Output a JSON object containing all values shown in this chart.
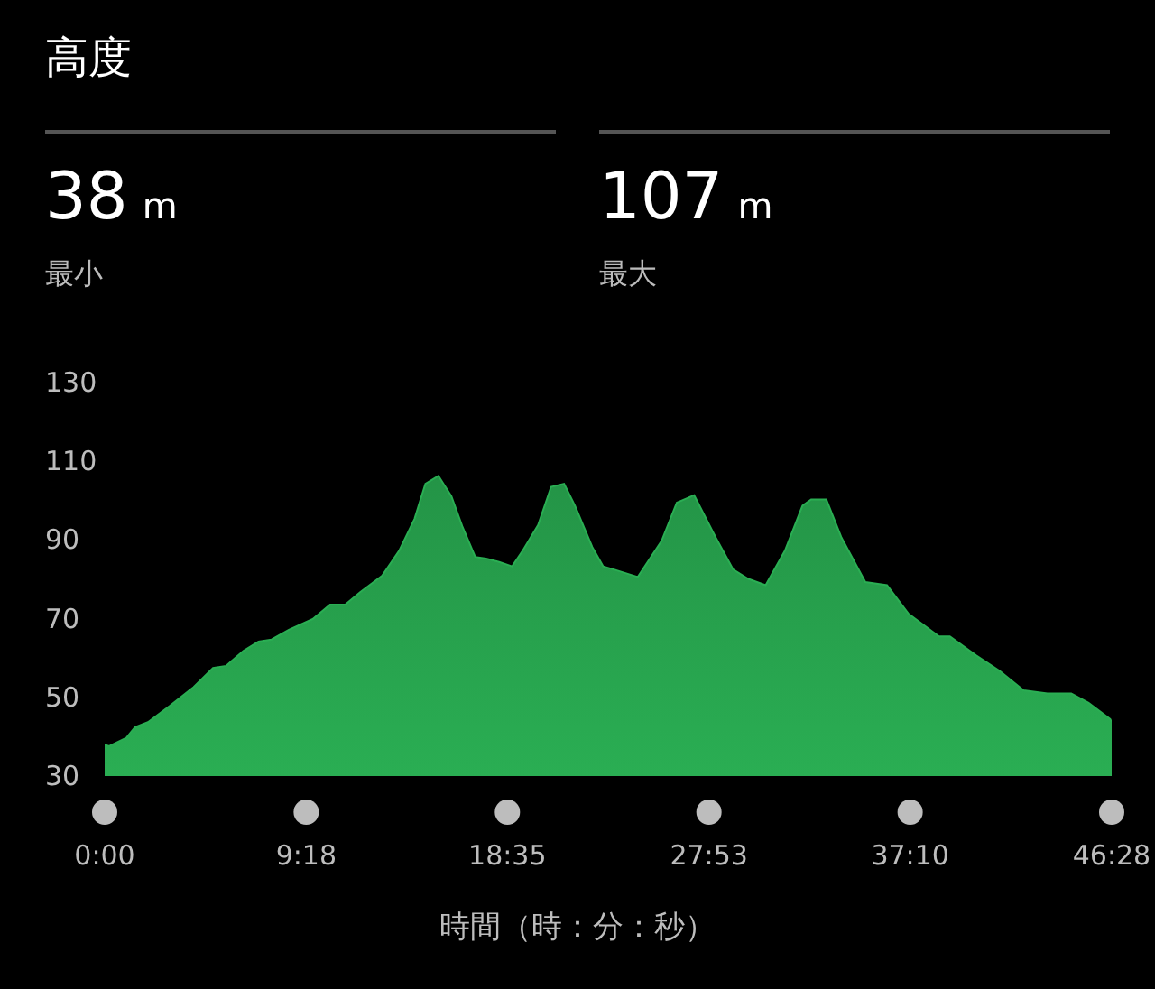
{
  "chart_data": {
    "type": "area",
    "title": "高度",
    "xlabel": "時間（時：分：秒）",
    "annotations": [
      "38 m",
      "最小",
      "107 m",
      "最大"
    ],
    "x": [
      0,
      0.2,
      1.0,
      1.4,
      2.0,
      3.0,
      4.1,
      5.0,
      5.6,
      6.4,
      7.1,
      7.7,
      8.5,
      9.6,
      10.4,
      11.1,
      11.8,
      12.8,
      13.6,
      14.3,
      14.8,
      15.4,
      16.0,
      16.5,
      17.1,
      17.6,
      18.2,
      18.8,
      19.3,
      20.0,
      20.6,
      21.2,
      21.7,
      22.5,
      23.0,
      23.5,
      24.6,
      25.7,
      26.4,
      27.2,
      28.2,
      29.0,
      29.7,
      30.5,
      31.4,
      32.2,
      32.6,
      33.3,
      34.0,
      35.1,
      36.1,
      37.1,
      38.5,
      39.0,
      40.2,
      41.3,
      42.4,
      43.5,
      44.6,
      45.4,
      46.4,
      46.467
    ],
    "series": [
      {
        "color": "#2aae53",
        "values": [
          38,
          37.6,
          39.7,
          42.4,
          43.7,
          47.8,
          52.6,
          57.5,
          58,
          61.8,
          64.2,
          64.7,
          67.2,
          69.9,
          73.6,
          73.6,
          76.8,
          80.9,
          87.4,
          95.4,
          104.3,
          106.3,
          101.1,
          93.5,
          85.7,
          85.3,
          84.4,
          83.3,
          87.4,
          93.8,
          103.5,
          104.3,
          98.7,
          88.2,
          83.3,
          82.5,
          80.6,
          89.8,
          99.5,
          101.4,
          90.6,
          82.5,
          80.1,
          78.5,
          87.4,
          98.7,
          100.3,
          100.3,
          90.6,
          79.3,
          78.5,
          71.2,
          65.5,
          65.5,
          60.7,
          56.7,
          51.8,
          51.0,
          51.0,
          48.6,
          44.5,
          43.7
        ]
      }
    ],
    "xlim": [
      0,
      46.467
    ],
    "xticks": [
      {
        "value": 0,
        "label": "0:00"
      },
      {
        "value": 9.3,
        "label": "9:18"
      },
      {
        "value": 18.583,
        "label": "18:35"
      },
      {
        "value": 27.883,
        "label": "27:53"
      },
      {
        "value": 37.167,
        "label": "37:10"
      },
      {
        "value": 46.467,
        "label": "46:28"
      }
    ],
    "ylim": [
      30,
      130
    ],
    "yticks": [
      30,
      50,
      70,
      90,
      110,
      130
    ],
    "grid": false,
    "legend": false,
    "marker": "none"
  }
}
